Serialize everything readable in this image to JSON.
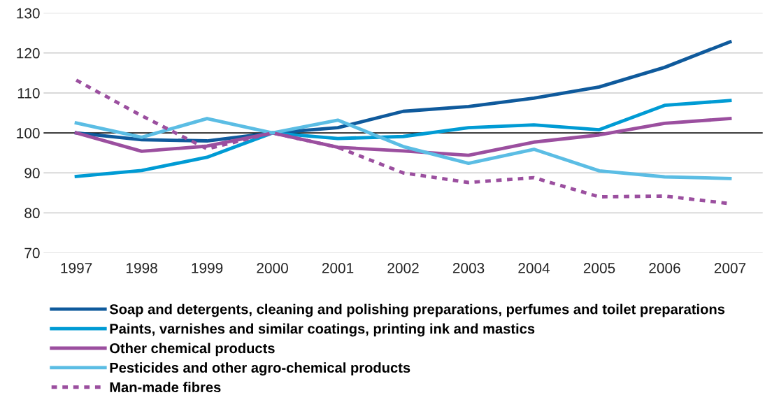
{
  "chart_data": {
    "type": "line",
    "categories": [
      "1997",
      "1998",
      "1999",
      "2000",
      "2001",
      "2002",
      "2003",
      "2004",
      "2005",
      "2006",
      "2007"
    ],
    "ylim": [
      70,
      130
    ],
    "yticks": [
      70,
      80,
      90,
      100,
      110,
      120,
      130
    ],
    "grid": "y",
    "legend": "bottom",
    "marker": "none",
    "ref_lines": [
      {
        "axis": "y",
        "value": 100,
        "color": "#1a1a1a"
      }
    ],
    "series": [
      {
        "name": "Soap and detergents, cleaning and polishing preparations, perfumes and toilet preparations",
        "color": "#0f5a9c",
        "line_style": "solid",
        "values": [
          100,
          98.3,
          98.0,
          100,
          101.3,
          105.4,
          106.6,
          108.7,
          111.5,
          116.4,
          122.8
        ]
      },
      {
        "name": "Paints, varnishes and similar coatings, printing ink and mastics",
        "color": "#009bd4",
        "line_style": "solid",
        "values": [
          89.1,
          90.6,
          93.9,
          100,
          98.6,
          99.1,
          101.3,
          102.0,
          100.8,
          106.9,
          108.1
        ]
      },
      {
        "name": "Other chemical products",
        "color": "#9b4f9f",
        "line_style": "solid",
        "values": [
          100,
          95.4,
          96.7,
          100,
          96.4,
          95.5,
          94.4,
          97.7,
          99.5,
          102.4,
          103.6
        ]
      },
      {
        "name": "Pesticides and other agro-chemical products",
        "color": "#5bbde4",
        "line_style": "solid",
        "values": [
          102.5,
          98.9,
          103.6,
          100,
          103.2,
          96.6,
          92.4,
          95.9,
          90.5,
          89.0,
          88.6
        ]
      },
      {
        "name": "Man-made fibres",
        "color": "#9b4f9f",
        "line_style": "dashed",
        "values": [
          113.2,
          104.3,
          96.0,
          100,
          96.4,
          90.0,
          87.6,
          88.8,
          84.0,
          84.2,
          82.3
        ]
      }
    ]
  }
}
